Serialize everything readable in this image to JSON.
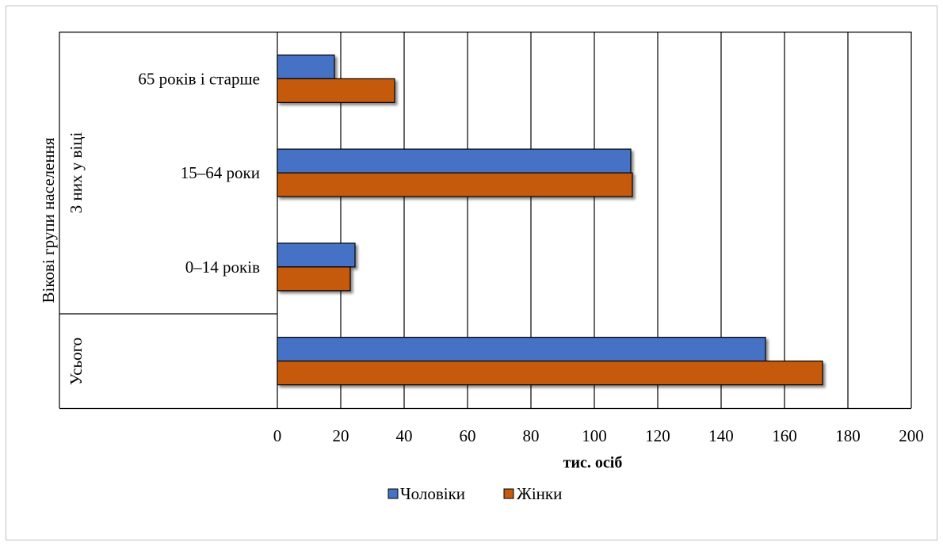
{
  "chart_data": {
    "type": "bar",
    "orientation": "horizontal",
    "title": "",
    "xlabel": "тис. осіб",
    "ylabel": "Вікові групи населення",
    "group_labels": [
      "Усього",
      "З них у віці"
    ],
    "categories": [
      "Усього",
      "0–14 років",
      "15–64 роки",
      "65 років і старше"
    ],
    "series": [
      {
        "name": "Чоловіки",
        "color": "#4472C4",
        "values": [
          154,
          24.5,
          111.5,
          18
        ]
      },
      {
        "name": "Жінки",
        "color": "#C55A11",
        "values": [
          172,
          23,
          112,
          37
        ]
      }
    ],
    "xlim": [
      0,
      200
    ],
    "xticks": [
      "0",
      "20",
      "40",
      "60",
      "80",
      "100",
      "120",
      "140",
      "160",
      "180",
      "200"
    ],
    "grid": true,
    "legend_position": "bottom"
  }
}
